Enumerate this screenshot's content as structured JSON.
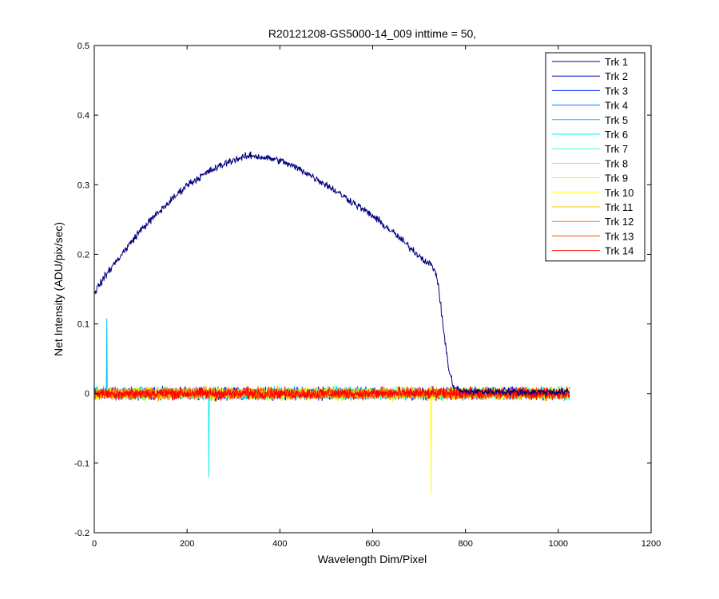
{
  "chart_data": {
    "type": "line",
    "title": "R20121208-GS5000-14_009 inttime = 50,",
    "xlabel": "Wavelength Dim/Pixel",
    "ylabel": "Net Intensity (ADU/pix/sec)",
    "xlim": [
      0,
      1200
    ],
    "ylim": [
      -0.2,
      0.5
    ],
    "xticks": [
      0,
      200,
      400,
      600,
      800,
      1000,
      1200
    ],
    "xtick_labels": [
      "0",
      "200",
      "400",
      "600",
      "800",
      "1000",
      "1200"
    ],
    "yticks": [
      -0.2,
      -0.1,
      0,
      0.1,
      0.2,
      0.3,
      0.4,
      0.5
    ],
    "ytick_labels": [
      "-0.2",
      "-0.1",
      "0",
      "0.1",
      "0.2",
      "0.3",
      "0.4",
      "0.5"
    ],
    "grid": false,
    "legend_position": "top-right",
    "x_range": [
      1,
      1024
    ],
    "series": [
      {
        "name": "Trk 1",
        "color": "#000080",
        "profile": [
          [
            0,
            0.145
          ],
          [
            30,
            0.175
          ],
          [
            100,
            0.235
          ],
          [
            200,
            0.3
          ],
          [
            250,
            0.32
          ],
          [
            300,
            0.336
          ],
          [
            340,
            0.342
          ],
          [
            400,
            0.335
          ],
          [
            450,
            0.32
          ],
          [
            500,
            0.3
          ],
          [
            550,
            0.278
          ],
          [
            600,
            0.255
          ],
          [
            650,
            0.228
          ],
          [
            700,
            0.198
          ],
          [
            730,
            0.182
          ],
          [
            738,
            0.17
          ],
          [
            745,
            0.135
          ],
          [
            755,
            0.08
          ],
          [
            765,
            0.03
          ],
          [
            775,
            0.01
          ],
          [
            790,
            0.003
          ],
          [
            1024,
            0.002
          ]
        ],
        "noise": 0.006
      },
      {
        "name": "Trk 2",
        "color": "#0000bf",
        "noise": 0.009
      },
      {
        "name": "Trk 3",
        "color": "#0028ff",
        "noise": 0.009
      },
      {
        "name": "Trk 4",
        "color": "#0074ff",
        "noise": 0.009
      },
      {
        "name": "Trk 5",
        "color": "#00bfff",
        "noise": 0.009,
        "spikes": [
          [
            27,
            0.108
          ]
        ]
      },
      {
        "name": "Trk 6",
        "color": "#0ff0f0",
        "noise": 0.009,
        "spikes": [
          [
            247,
            -0.12
          ]
        ]
      },
      {
        "name": "Trk 7",
        "color": "#40ffbf",
        "noise": 0.009
      },
      {
        "name": "Trk 8",
        "color": "#80ff80",
        "noise": 0.009
      },
      {
        "name": "Trk 9",
        "color": "#bfff40",
        "noise": 0.009
      },
      {
        "name": "Trk 10",
        "color": "#ffff00",
        "noise": 0.009,
        "spikes": [
          [
            726,
            -0.145
          ]
        ]
      },
      {
        "name": "Trk 11",
        "color": "#ffbf00",
        "noise": 0.009
      },
      {
        "name": "Trk 12",
        "color": "#ff8000",
        "noise": 0.009
      },
      {
        "name": "Trk 13",
        "color": "#ff4000",
        "noise": 0.009
      },
      {
        "name": "Trk 14",
        "color": "#ff0000",
        "noise": 0.009
      }
    ]
  }
}
